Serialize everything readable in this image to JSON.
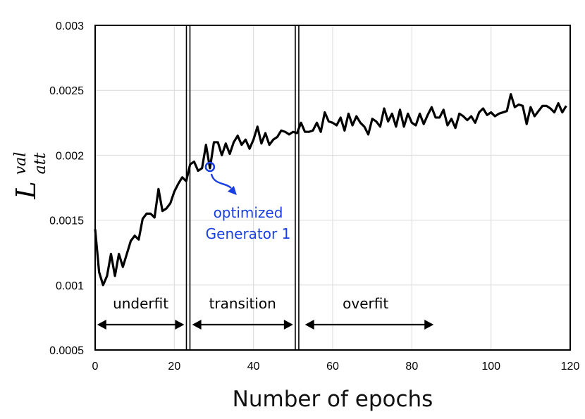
{
  "chart_data": {
    "type": "line",
    "title": "",
    "xlabel": "Number of epochs",
    "ylabel": {
      "main": "L",
      "sup": "val",
      "sub": "att"
    },
    "xlim": [
      0,
      120
    ],
    "ylim": [
      0.0005,
      0.003
    ],
    "xticks": [
      0,
      20,
      40,
      60,
      80,
      100,
      120
    ],
    "xtick_labels": [
      "0",
      "20",
      "40",
      "60",
      "80",
      "100",
      "120"
    ],
    "yticks": [
      0.0005,
      0.001,
      0.0015,
      0.002,
      0.0025,
      0.003
    ],
    "ytick_labels": [
      "0.0005",
      "0.001",
      "0.0015",
      "0.002",
      "0.0025",
      "0.003"
    ],
    "grid": true,
    "colors": {
      "line": "#000000",
      "grid": "#d9d9d9",
      "annotation": "#1a3fe0"
    },
    "series": [
      {
        "values": [
          0.00143,
          0.0011,
          0.001,
          0.00107,
          0.00124,
          0.00107,
          0.00124,
          0.00114,
          0.00124,
          0.00134,
          0.00138,
          0.00135,
          0.00151,
          0.00155,
          0.00155,
          0.00152,
          0.00174,
          0.00157,
          0.00159,
          0.00163,
          0.00172,
          0.00178,
          0.00183,
          0.0018,
          0.00193,
          0.00195,
          0.00188,
          0.0019,
          0.00208,
          0.0019,
          0.0021,
          0.0021,
          0.002,
          0.00209,
          0.00201,
          0.0021,
          0.00215,
          0.00208,
          0.00212,
          0.00205,
          0.00212,
          0.00222,
          0.00209,
          0.00217,
          0.00208,
          0.00212,
          0.00214,
          0.00219,
          0.00218,
          0.00216,
          0.00218,
          0.00217,
          0.00225,
          0.00218,
          0.00218,
          0.00219,
          0.00225,
          0.00218,
          0.00233,
          0.00226,
          0.00225,
          0.00223,
          0.00229,
          0.00219,
          0.00232,
          0.00223,
          0.0023,
          0.00225,
          0.00222,
          0.00216,
          0.00228,
          0.00226,
          0.00222,
          0.00236,
          0.00226,
          0.00232,
          0.00222,
          0.00235,
          0.00222,
          0.00232,
          0.00225,
          0.00223,
          0.00232,
          0.00224,
          0.00231,
          0.00237,
          0.00229,
          0.00229,
          0.00235,
          0.00223,
          0.00228,
          0.00221,
          0.00232,
          0.0023,
          0.00227,
          0.0023,
          0.00225,
          0.00233,
          0.00236,
          0.00231,
          0.00233,
          0.0023,
          0.00232,
          0.00233,
          0.00234,
          0.00247,
          0.00237,
          0.00239,
          0.00238,
          0.00224,
          0.00237,
          0.0023,
          0.00234,
          0.00238,
          0.00238,
          0.00236,
          0.00233,
          0.0024,
          0.00233,
          0.00238
        ]
      }
    ],
    "boundaries": [
      23.5,
      51
    ],
    "regions": [
      {
        "label": "underfit",
        "arrow_from": 0.5,
        "arrow_to": 22.5
      },
      {
        "label": "transition",
        "arrow_from": 24.5,
        "arrow_to": 50
      },
      {
        "label": "overfit",
        "arrow_from": 53,
        "arrow_to": 85.5
      }
    ],
    "annotation": {
      "x": 29,
      "y": 0.00191,
      "lines": [
        "optimized",
        "Generator 1"
      ]
    }
  }
}
